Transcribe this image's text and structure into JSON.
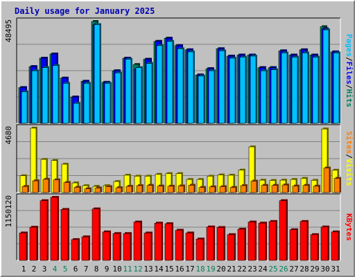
{
  "title": "Daily usage for January 2025",
  "colors": {
    "hits": "#00805c",
    "files": "#0000ff",
    "pages": "#00c0ff",
    "visits": "#ffff00",
    "sites": "#ff8000",
    "kbytes": "#ff0000",
    "weekend_label": "#00805c",
    "weekday_label": "#000000"
  },
  "chart_data": [
    {
      "type": "bar",
      "name": "hits-files-pages",
      "categories": [
        "1",
        "2",
        "3",
        "4",
        "5",
        "6",
        "7",
        "8",
        "9",
        "10",
        "11",
        "12",
        "13",
        "14",
        "15",
        "16",
        "17",
        "18",
        "19",
        "20",
        "21",
        "22",
        "23",
        "24",
        "25",
        "26",
        "27",
        "28",
        "29",
        "30",
        "31"
      ],
      "weekend_days": [
        4,
        5,
        11,
        12,
        18,
        19,
        25,
        26
      ],
      "ymax_label": "48495",
      "ylim": [
        0,
        48495
      ],
      "series": [
        {
          "name": "Hits",
          "values": [
            17000,
            27000,
            31000,
            33000,
            21500,
            12500,
            20000,
            48495,
            19500,
            25000,
            31000,
            28000,
            30500,
            39000,
            40500,
            37000,
            35000,
            23000,
            26000,
            35500,
            32000,
            32500,
            32500,
            26500,
            26500,
            34500,
            32500,
            35000,
            32500,
            46000,
            34000
          ]
        },
        {
          "name": "Files",
          "values": [
            17000,
            27000,
            31000,
            33000,
            21500,
            12500,
            20000,
            47000,
            19500,
            25000,
            31000,
            26000,
            30500,
            39000,
            40500,
            37000,
            35000,
            23000,
            26000,
            35500,
            32000,
            32500,
            32500,
            26500,
            26500,
            34500,
            32500,
            35000,
            32500,
            45000,
            34000
          ]
        },
        {
          "name": "Pages",
          "values": [
            15000,
            25000,
            26500,
            27500,
            19000,
            9500,
            19000,
            47000,
            19000,
            24000,
            30500,
            26500,
            28500,
            37000,
            39000,
            35500,
            34000,
            22500,
            25000,
            34500,
            31000,
            31500,
            32000,
            25000,
            25500,
            33500,
            31500,
            33500,
            31500,
            44500,
            33500
          ]
        }
      ],
      "legend": [
        "Pages",
        "Files",
        "Hits"
      ]
    },
    {
      "type": "bar",
      "name": "sites-visits",
      "categories": [
        "1",
        "2",
        "3",
        "4",
        "5",
        "6",
        "7",
        "8",
        "9",
        "10",
        "11",
        "12",
        "13",
        "14",
        "15",
        "16",
        "17",
        "18",
        "19",
        "20",
        "21",
        "22",
        "23",
        "24",
        "25",
        "26",
        "27",
        "28",
        "29",
        "30",
        "31"
      ],
      "ymax_label": "4680",
      "ylim": [
        0,
        4680
      ],
      "series": [
        {
          "name": "Visits",
          "values": [
            1220,
            4680,
            2410,
            2330,
            2060,
            700,
            500,
            450,
            500,
            800,
            1260,
            1190,
            1190,
            1320,
            1380,
            1380,
            950,
            950,
            1190,
            1280,
            1260,
            1630,
            3320,
            900,
            880,
            900,
            950,
            1030,
            890,
            4620,
            1620
          ]
        },
        {
          "name": "Sites",
          "values": [
            440,
            850,
            960,
            920,
            730,
            380,
            270,
            330,
            430,
            350,
            450,
            500,
            520,
            470,
            460,
            480,
            530,
            370,
            410,
            430,
            370,
            500,
            830,
            520,
            520,
            550,
            470,
            520,
            460,
            1780,
            1030
          ]
        }
      ],
      "legend": [
        "Sites",
        "Visits"
      ]
    },
    {
      "type": "bar",
      "name": "kbytes",
      "categories": [
        "1",
        "2",
        "3",
        "4",
        "5",
        "6",
        "7",
        "8",
        "9",
        "10",
        "11",
        "12",
        "13",
        "14",
        "15",
        "16",
        "17",
        "18",
        "19",
        "20",
        "21",
        "22",
        "23",
        "24",
        "25",
        "26",
        "27",
        "28",
        "29",
        "30",
        "31"
      ],
      "ymax_label": "1150120",
      "ylim": [
        0,
        1150120
      ],
      "series": [
        {
          "name": "KBytes",
          "values": [
            500000,
            605000,
            1090000,
            1150120,
            930000,
            380000,
            430000,
            940000,
            520000,
            490000,
            490000,
            700000,
            500000,
            680000,
            670000,
            550000,
            500000,
            390000,
            610000,
            600000,
            470000,
            570000,
            700000,
            680000,
            710000,
            1090000,
            560000,
            710000,
            470000,
            610000,
            520000
          ]
        }
      ],
      "legend": [
        "KBytes"
      ]
    }
  ]
}
